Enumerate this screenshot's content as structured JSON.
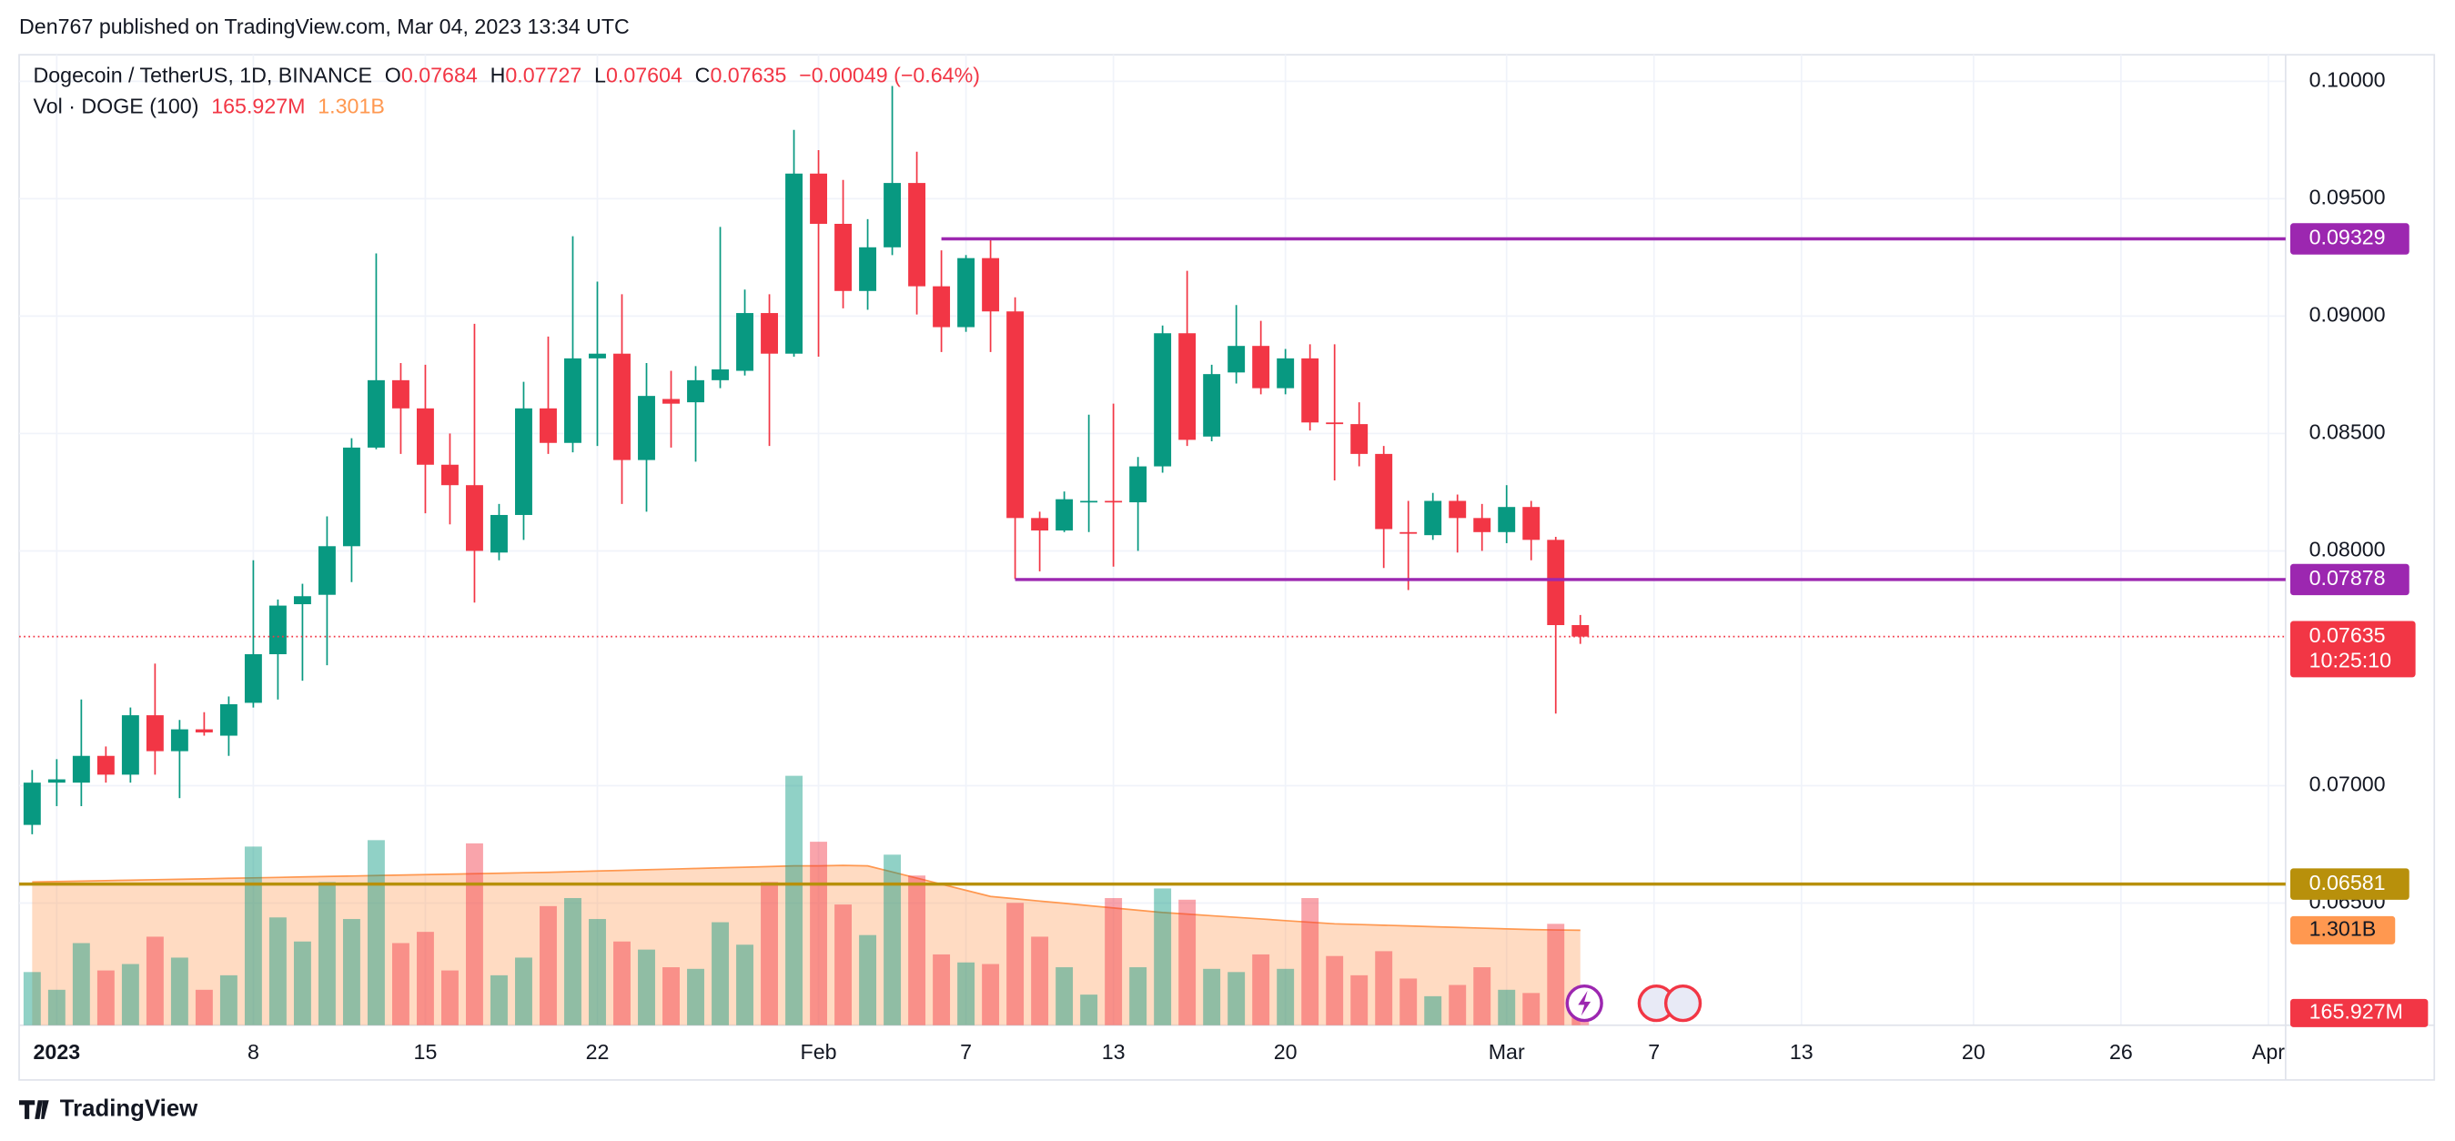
{
  "header": {
    "published": "Den767 published on TradingView.com, Mar 04, 2023 13:34 UTC",
    "brand": "TradingView"
  },
  "chart_data": {
    "type": "candlestick",
    "title": "Dogecoin / TetherUS, 1D, BINANCE",
    "ohlc_labels": [
      "O",
      "H",
      "L",
      "C"
    ],
    "change": "−0.00049 (−0.64%)",
    "up_color": "#089981",
    "down_color": "#f23645",
    "x": [
      -1,
      0,
      1,
      2,
      3,
      4,
      5,
      6,
      7,
      8,
      9,
      10,
      11,
      12,
      13,
      14,
      15,
      16,
      17,
      18,
      19,
      20,
      21,
      22,
      23,
      24,
      25,
      26,
      27,
      28,
      29,
      30,
      31,
      32,
      33,
      34,
      35,
      36,
      37,
      38,
      39,
      40,
      41,
      42,
      43,
      44,
      45,
      46,
      47,
      48,
      49,
      50,
      51,
      52,
      53,
      54,
      55,
      56,
      57,
      58,
      59,
      60,
      61,
      62
    ],
    "open": [
      0.06833,
      0.07013,
      0.07013,
      0.07127,
      0.07047,
      0.073,
      0.07147,
      0.0724,
      0.07213,
      0.07353,
      0.0756,
      0.07773,
      0.07813,
      0.0802,
      0.0844,
      0.08727,
      0.08607,
      0.08367,
      0.0828,
      0.07993,
      0.08153,
      0.08607,
      0.0846,
      0.0882,
      0.0884,
      0.08387,
      0.08647,
      0.08633,
      0.08727,
      0.08767,
      0.09013,
      0.0884,
      0.09607,
      0.09393,
      0.09107,
      0.09293,
      0.09567,
      0.09127,
      0.08953,
      0.09247,
      0.0902,
      0.0814,
      0.08087,
      0.08207,
      0.08213,
      0.08207,
      0.0836,
      0.08927,
      0.08487,
      0.0876,
      0.08873,
      0.08693,
      0.0882,
      0.08547,
      0.0854,
      0.08413,
      0.0808,
      0.08067,
      0.08213,
      0.0814,
      0.0808,
      0.08187,
      0.08047,
      0.07684
    ],
    "close": [
      0.07013,
      0.07027,
      0.07127,
      0.07047,
      0.073,
      0.07147,
      0.0724,
      0.07227,
      0.07347,
      0.0756,
      0.07767,
      0.07807,
      0.0802,
      0.0844,
      0.08727,
      0.08607,
      0.08367,
      0.0828,
      0.08,
      0.08153,
      0.08607,
      0.0846,
      0.0882,
      0.0884,
      0.08387,
      0.0866,
      0.08627,
      0.08727,
      0.08773,
      0.09013,
      0.0884,
      0.09607,
      0.09393,
      0.09107,
      0.09293,
      0.09567,
      0.09127,
      0.08953,
      0.09247,
      0.0902,
      0.0814,
      0.08087,
      0.0822,
      0.08213,
      0.08207,
      0.0836,
      0.08927,
      0.08473,
      0.08753,
      0.08873,
      0.08693,
      0.0882,
      0.08547,
      0.0854,
      0.08413,
      0.08093,
      0.08073,
      0.08213,
      0.0814,
      0.0808,
      0.08187,
      0.08047,
      0.07684,
      0.07635
    ],
    "high": [
      0.07067,
      0.07113,
      0.07367,
      0.07167,
      0.07333,
      0.0752,
      0.0728,
      0.07313,
      0.0738,
      0.0796,
      0.07793,
      0.0786,
      0.08147,
      0.0848,
      0.09267,
      0.088,
      0.08793,
      0.085,
      0.08967,
      0.082,
      0.0872,
      0.08913,
      0.0934,
      0.09147,
      0.09093,
      0.088,
      0.08767,
      0.08787,
      0.0938,
      0.09113,
      0.09093,
      0.09793,
      0.09707,
      0.0958,
      0.09413,
      0.0998,
      0.097,
      0.0928,
      0.0926,
      0.09333,
      0.0908,
      0.08167,
      0.08253,
      0.0858,
      0.08627,
      0.084,
      0.0896,
      0.09193,
      0.08793,
      0.09047,
      0.0898,
      0.0886,
      0.0888,
      0.0888,
      0.08633,
      0.08447,
      0.08213,
      0.08247,
      0.0824,
      0.082,
      0.0828,
      0.08213,
      0.0806,
      0.07727
    ],
    "low": [
      0.06793,
      0.06913,
      0.06913,
      0.07013,
      0.07013,
      0.07047,
      0.06947,
      0.07213,
      0.07127,
      0.07333,
      0.07367,
      0.07447,
      0.07513,
      0.07867,
      0.08433,
      0.08413,
      0.0816,
      0.08113,
      0.0778,
      0.0796,
      0.08047,
      0.08413,
      0.0842,
      0.08447,
      0.082,
      0.08167,
      0.0844,
      0.0838,
      0.08693,
      0.08747,
      0.08447,
      0.08827,
      0.08827,
      0.09033,
      0.09027,
      0.0926,
      0.09007,
      0.08847,
      0.08933,
      0.08847,
      0.0788,
      0.07913,
      0.0808,
      0.0808,
      0.07933,
      0.08,
      0.08333,
      0.08447,
      0.08467,
      0.08713,
      0.08667,
      0.08667,
      0.08513,
      0.083,
      0.0836,
      0.07927,
      0.07833,
      0.08047,
      0.07993,
      0.08,
      0.08033,
      0.0796,
      0.07307,
      0.07604
    ],
    "volume_name": "Vol · DOGE (100)",
    "volume": [
      728,
      485,
      1125,
      750,
      838,
      1213,
      926,
      485,
      684,
      2448,
      1477,
      1147,
      1962,
      1455,
      2536,
      1125,
      1279,
      750,
      2492,
      684,
      926,
      1632,
      1742,
      1455,
      1147,
      1036,
      794,
      772,
      1411,
      1103,
      1962,
      3418,
      2514,
      1654,
      1235,
      2337,
      2051,
      970,
      860,
      838,
      1676,
      1213,
      794,
      419,
      1742,
      794,
      1874,
      1720,
      772,
      728,
      970,
      772,
      1742,
      948,
      684,
      1014,
      639,
      397,
      551,
      794,
      485,
      441,
      1389,
      165.927
    ],
    "volume_value_label": "165.927M",
    "volume_ma": [
      1962,
      1968,
      1975,
      1981,
      1987,
      1994,
      2000,
      2006,
      2013,
      2019,
      2025,
      2032,
      2038,
      2044,
      2051,
      2057,
      2063,
      2070,
      2076,
      2082,
      2089,
      2095,
      2104,
      2113,
      2121,
      2130,
      2139,
      2148,
      2157,
      2165,
      2174,
      2183,
      2183,
      2190,
      2183,
      2100,
      2016,
      1932,
      1848,
      1764,
      1733,
      1701,
      1670,
      1638,
      1607,
      1575,
      1544,
      1522,
      1500,
      1478,
      1456,
      1433,
      1411,
      1389,
      1380,
      1370,
      1360,
      1350,
      1340,
      1330,
      1320,
      1310,
      1305,
      1301
    ],
    "volume_ma_label": "1.301B",
    "volume_ma_color": "#ff9850",
    "volume_ylim": [
      0,
      13300
    ],
    "levels": [
      {
        "value": 0.09329,
        "label": "0.09329",
        "color": "#9c27b0",
        "start": 36
      },
      {
        "value": 0.07878,
        "label": "0.07878",
        "color": "#9c27b0",
        "start": 39
      },
      {
        "value": 0.06581,
        "label": "0.06581",
        "color": "#b8900b",
        "start": -1.53
      }
    ],
    "countdown": "10:25:10",
    "xlim": [
      -1.53,
      90.7
    ],
    "xticks": [
      {
        "value": 0,
        "label": "2023"
      },
      8,
      15,
      22,
      {
        "value": 31,
        "label": "Feb"
      },
      {
        "value": 37,
        "label": "7"
      },
      {
        "value": 43,
        "label": "13"
      },
      {
        "value": 50,
        "label": "20"
      },
      {
        "value": 59,
        "label": "Mar"
      },
      {
        "value": 65,
        "label": "7"
      },
      {
        "value": 71,
        "label": "13"
      },
      {
        "value": 78,
        "label": "20"
      },
      {
        "value": 84,
        "label": "26"
      },
      {
        "value": 90,
        "label": "Apr"
      }
    ],
    "ylim": [
      0.0598,
      0.10113
    ],
    "yticks": [
      {
        "value": 0.065,
        "label": "0.06500"
      },
      {
        "value": 0.07,
        "label": "0.07000"
      },
      {
        "value": 0.08,
        "label": "0.08000"
      },
      {
        "value": 0.085,
        "label": "0.08500"
      },
      {
        "value": 0.09,
        "label": "0.09000"
      },
      {
        "value": 0.095,
        "label": "0.09500"
      },
      {
        "value": 0.1,
        "label": "0.10000"
      }
    ],
    "grid": true
  }
}
